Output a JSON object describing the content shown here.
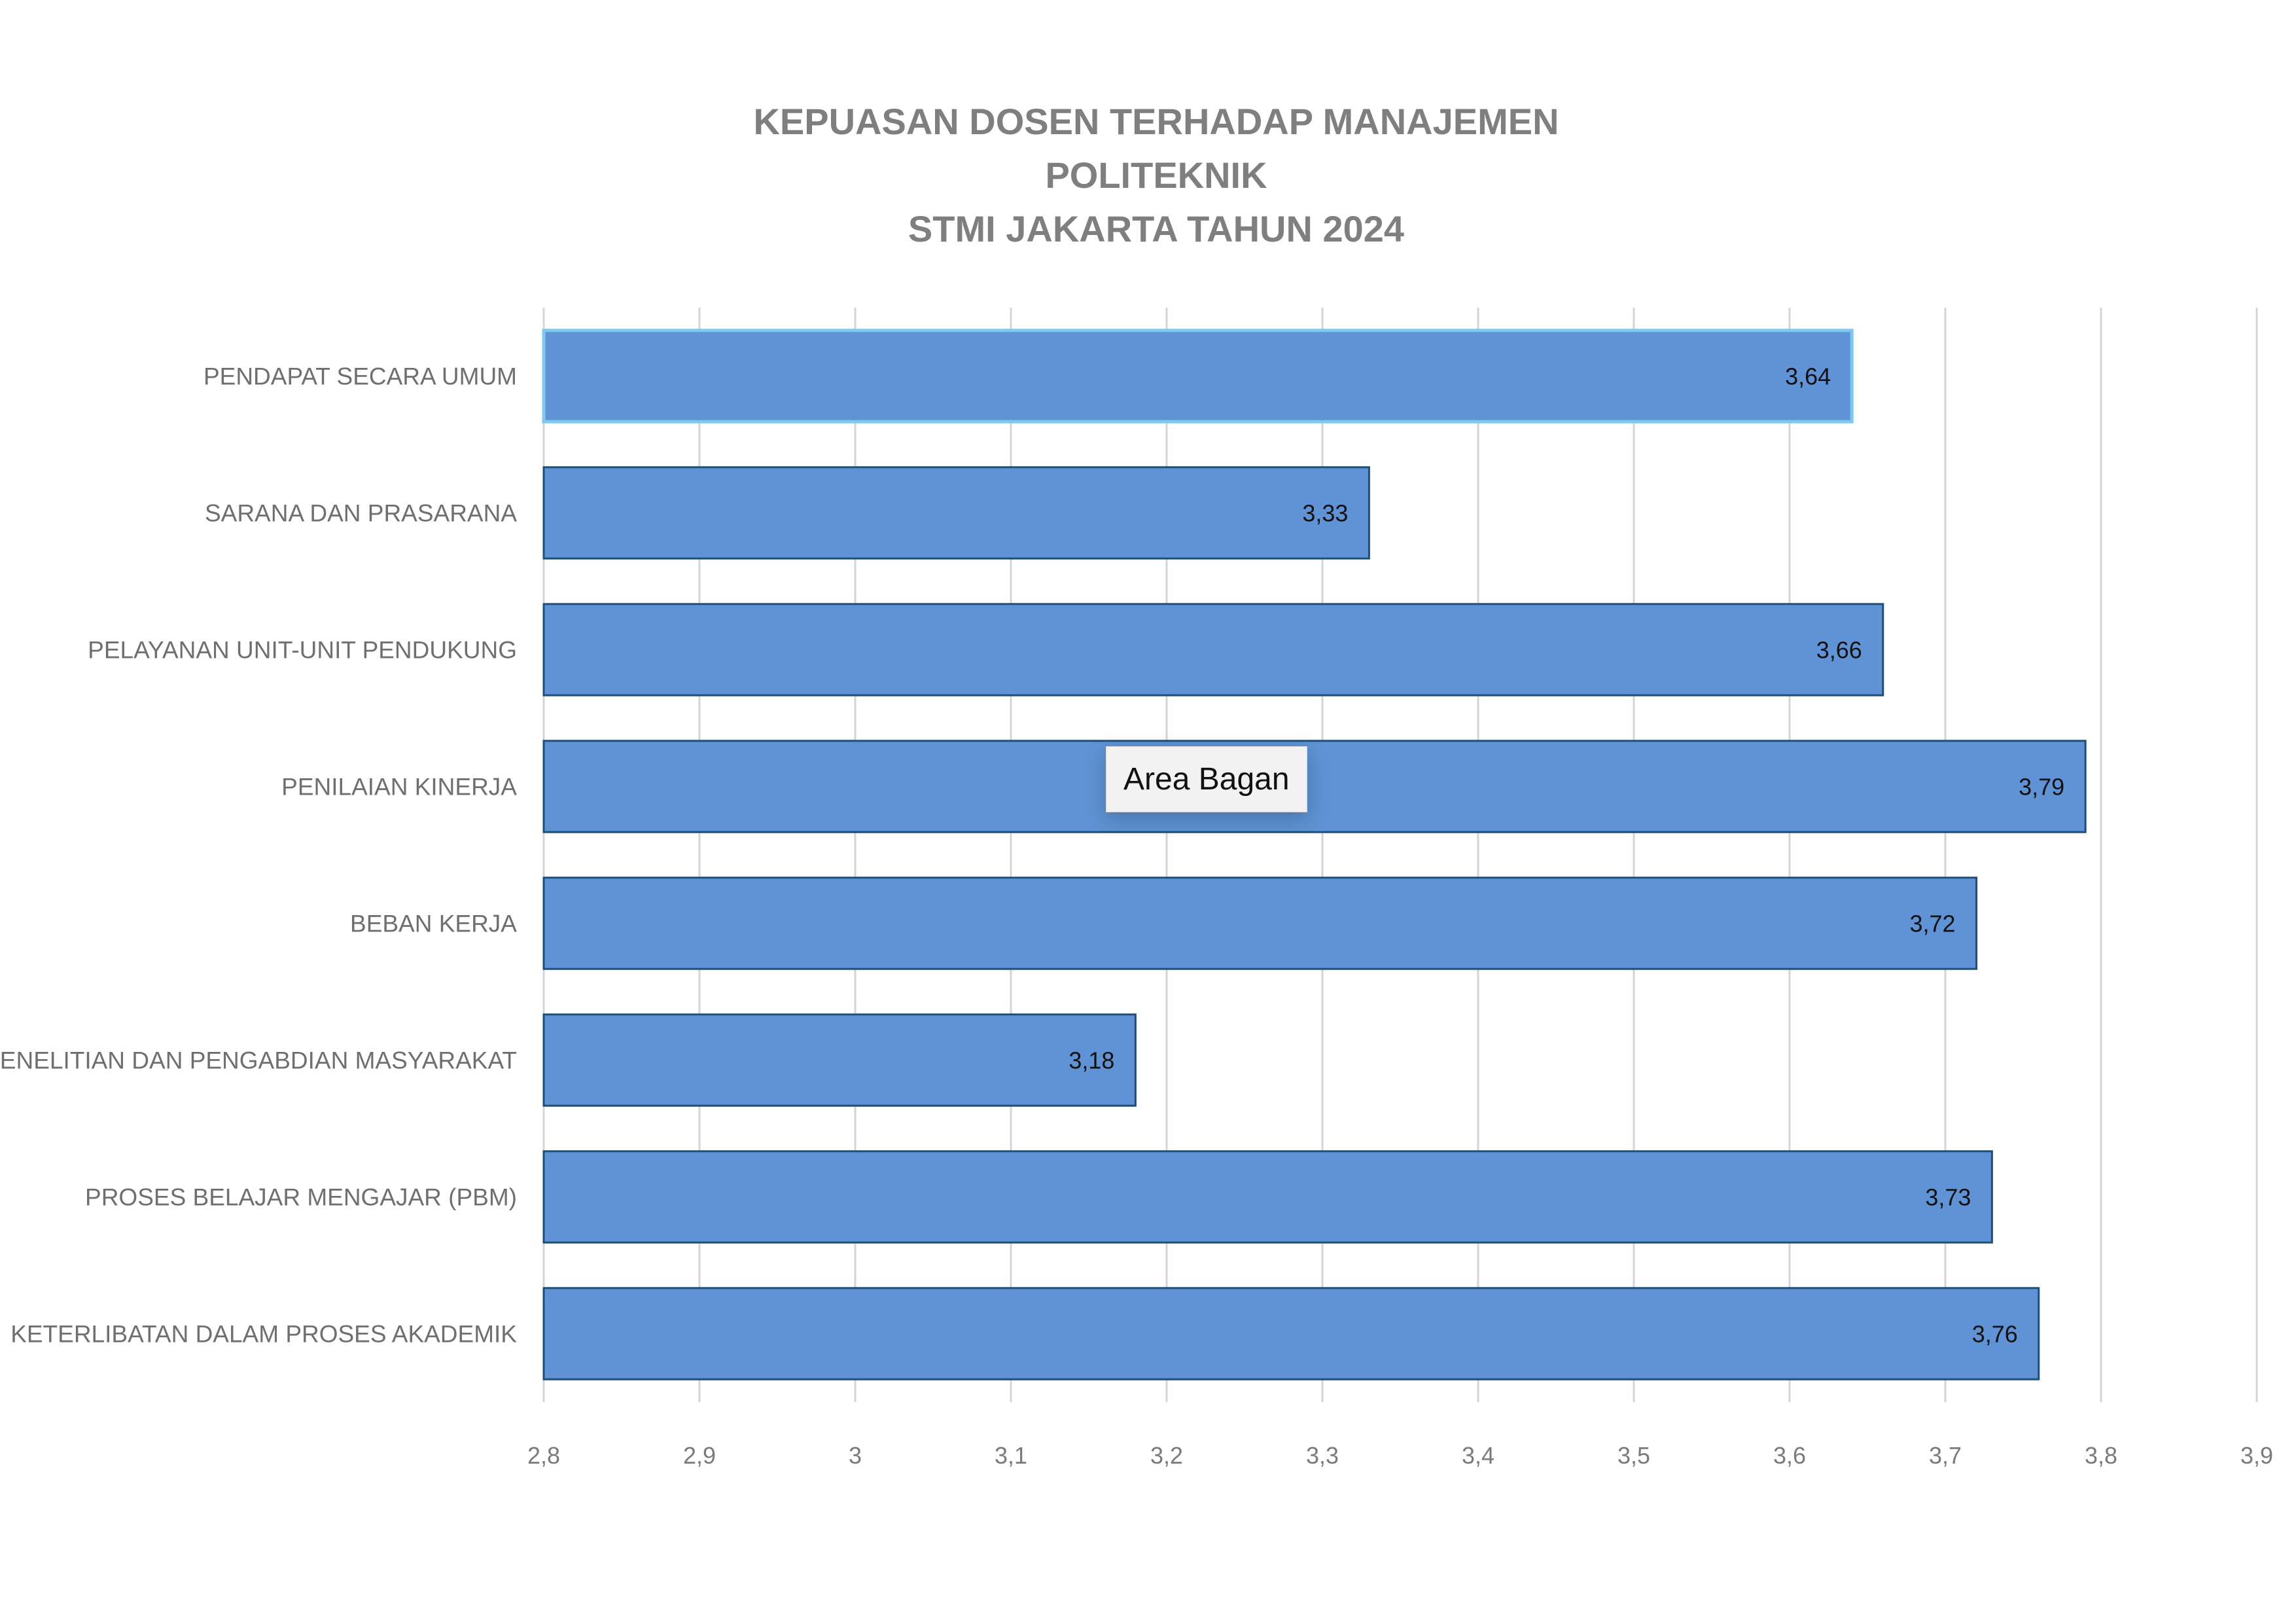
{
  "chart_data": {
    "type": "bar",
    "orientation": "horizontal",
    "title_lines": [
      "KEPUASAN DOSEN TERHADAP MANAJEMEN",
      "POLITEKNIK",
      "STMI JAKARTA TAHUN 2024"
    ],
    "categories": [
      "PENDAPAT SECARA UMUM",
      "SARANA DAN PRASARANA",
      "PELAYANAN UNIT-UNIT PENDUKUNG",
      "PENILAIAN KINERJA",
      "BEBAN KERJA",
      "PENELITIAN DAN PENGABDIAN MASYARAKAT",
      "PROSES BELAJAR MENGAJAR (PBM)",
      "KETERLIBATAN DALAM PROSES AKADEMIK"
    ],
    "values": [
      3.64,
      3.33,
      3.66,
      3.79,
      3.72,
      3.18,
      3.73,
      3.76
    ],
    "value_labels": [
      "3,64",
      "3,33",
      "3,66",
      "3,79",
      "3,72",
      "3,18",
      "3,73",
      "3,76"
    ],
    "xlim": [
      2.8,
      3.9
    ],
    "x_ticks": [
      2.8,
      2.9,
      3.0,
      3.1,
      3.2,
      3.3,
      3.4,
      3.5,
      3.6,
      3.7,
      3.8,
      3.9
    ],
    "x_tick_labels": [
      "2,8",
      "2,9",
      "3",
      "3,1",
      "3,2",
      "3,3",
      "3,4",
      "3,5",
      "3,6",
      "3,7",
      "3,8",
      "3,9"
    ],
    "xlabel": "",
    "ylabel": "",
    "grid": "vertical",
    "bar_color": "#5f93d5",
    "bar_edge_color": "#1f4e79",
    "selected_bar_edge_color": "#7ec8f0",
    "selected_index": 0
  },
  "tooltip": {
    "text": "Area Bagan"
  }
}
